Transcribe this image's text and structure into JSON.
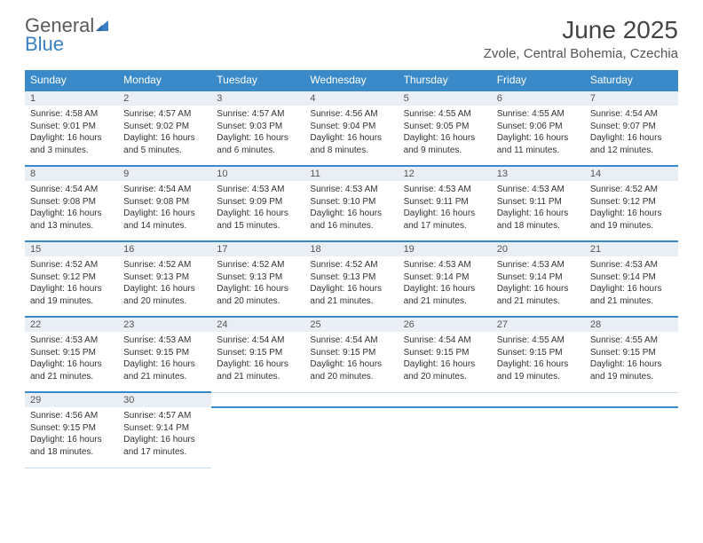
{
  "logo": {
    "word1": "General",
    "word2": "Blue"
  },
  "title": "June 2025",
  "subtitle": "Zvole, Central Bohemia, Czechia",
  "colors": {
    "header_bg": "#3a8ac9",
    "header_text": "#ffffff",
    "row_border_top": "#3a8ac9",
    "daynum_bg": "#e9eff4",
    "logo_gray": "#5a5a5a",
    "logo_blue": "#3a7fc4"
  },
  "weekdays": [
    "Sunday",
    "Monday",
    "Tuesday",
    "Wednesday",
    "Thursday",
    "Friday",
    "Saturday"
  ],
  "weeks": [
    [
      {
        "n": "1",
        "sr": "4:58 AM",
        "ss": "9:01 PM",
        "dl": "16 hours and 3 minutes."
      },
      {
        "n": "2",
        "sr": "4:57 AM",
        "ss": "9:02 PM",
        "dl": "16 hours and 5 minutes."
      },
      {
        "n": "3",
        "sr": "4:57 AM",
        "ss": "9:03 PM",
        "dl": "16 hours and 6 minutes."
      },
      {
        "n": "4",
        "sr": "4:56 AM",
        "ss": "9:04 PM",
        "dl": "16 hours and 8 minutes."
      },
      {
        "n": "5",
        "sr": "4:55 AM",
        "ss": "9:05 PM",
        "dl": "16 hours and 9 minutes."
      },
      {
        "n": "6",
        "sr": "4:55 AM",
        "ss": "9:06 PM",
        "dl": "16 hours and 11 minutes."
      },
      {
        "n": "7",
        "sr": "4:54 AM",
        "ss": "9:07 PM",
        "dl": "16 hours and 12 minutes."
      }
    ],
    [
      {
        "n": "8",
        "sr": "4:54 AM",
        "ss": "9:08 PM",
        "dl": "16 hours and 13 minutes."
      },
      {
        "n": "9",
        "sr": "4:54 AM",
        "ss": "9:08 PM",
        "dl": "16 hours and 14 minutes."
      },
      {
        "n": "10",
        "sr": "4:53 AM",
        "ss": "9:09 PM",
        "dl": "16 hours and 15 minutes."
      },
      {
        "n": "11",
        "sr": "4:53 AM",
        "ss": "9:10 PM",
        "dl": "16 hours and 16 minutes."
      },
      {
        "n": "12",
        "sr": "4:53 AM",
        "ss": "9:11 PM",
        "dl": "16 hours and 17 minutes."
      },
      {
        "n": "13",
        "sr": "4:53 AM",
        "ss": "9:11 PM",
        "dl": "16 hours and 18 minutes."
      },
      {
        "n": "14",
        "sr": "4:52 AM",
        "ss": "9:12 PM",
        "dl": "16 hours and 19 minutes."
      }
    ],
    [
      {
        "n": "15",
        "sr": "4:52 AM",
        "ss": "9:12 PM",
        "dl": "16 hours and 19 minutes."
      },
      {
        "n": "16",
        "sr": "4:52 AM",
        "ss": "9:13 PM",
        "dl": "16 hours and 20 minutes."
      },
      {
        "n": "17",
        "sr": "4:52 AM",
        "ss": "9:13 PM",
        "dl": "16 hours and 20 minutes."
      },
      {
        "n": "18",
        "sr": "4:52 AM",
        "ss": "9:13 PM",
        "dl": "16 hours and 21 minutes."
      },
      {
        "n": "19",
        "sr": "4:53 AM",
        "ss": "9:14 PM",
        "dl": "16 hours and 21 minutes."
      },
      {
        "n": "20",
        "sr": "4:53 AM",
        "ss": "9:14 PM",
        "dl": "16 hours and 21 minutes."
      },
      {
        "n": "21",
        "sr": "4:53 AM",
        "ss": "9:14 PM",
        "dl": "16 hours and 21 minutes."
      }
    ],
    [
      {
        "n": "22",
        "sr": "4:53 AM",
        "ss": "9:15 PM",
        "dl": "16 hours and 21 minutes."
      },
      {
        "n": "23",
        "sr": "4:53 AM",
        "ss": "9:15 PM",
        "dl": "16 hours and 21 minutes."
      },
      {
        "n": "24",
        "sr": "4:54 AM",
        "ss": "9:15 PM",
        "dl": "16 hours and 21 minutes."
      },
      {
        "n": "25",
        "sr": "4:54 AM",
        "ss": "9:15 PM",
        "dl": "16 hours and 20 minutes."
      },
      {
        "n": "26",
        "sr": "4:54 AM",
        "ss": "9:15 PM",
        "dl": "16 hours and 20 minutes."
      },
      {
        "n": "27",
        "sr": "4:55 AM",
        "ss": "9:15 PM",
        "dl": "16 hours and 19 minutes."
      },
      {
        "n": "28",
        "sr": "4:55 AM",
        "ss": "9:15 PM",
        "dl": "16 hours and 19 minutes."
      }
    ],
    [
      {
        "n": "29",
        "sr": "4:56 AM",
        "ss": "9:15 PM",
        "dl": "16 hours and 18 minutes."
      },
      {
        "n": "30",
        "sr": "4:57 AM",
        "ss": "9:14 PM",
        "dl": "16 hours and 17 minutes."
      },
      null,
      null,
      null,
      null,
      null
    ]
  ],
  "labels": {
    "sunrise": "Sunrise:",
    "sunset": "Sunset:",
    "daylight": "Daylight:"
  }
}
